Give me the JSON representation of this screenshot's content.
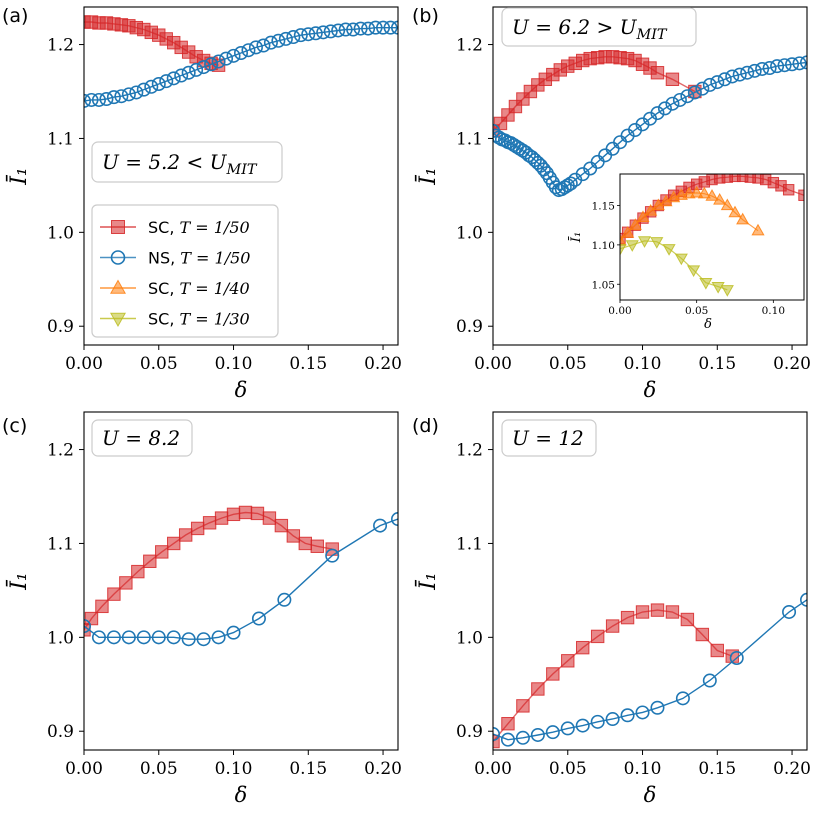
{
  "chart_data": [
    {
      "type": "line",
      "panel_label": "(a)",
      "xlabel": "δ",
      "ylabel": "Ī₁",
      "xlim": [
        0,
        0.21
      ],
      "ylim": [
        0.88,
        1.24
      ],
      "xticks": [
        0.0,
        0.05,
        0.1,
        0.15,
        0.2
      ],
      "xtick_labels": [
        "0.00",
        "0.05",
        "0.10",
        "0.15",
        "0.20"
      ],
      "yticks": [
        0.9,
        1.0,
        1.1,
        1.2
      ],
      "ytick_labels": [
        "0.9",
        "1.0",
        "1.1",
        "1.2"
      ],
      "annotation": "U = 5.2 < U_MIT",
      "legend_position": "lower-left",
      "legend": [
        {
          "name": "SC, T = 1/50",
          "color": "#d62728",
          "marker": "square"
        },
        {
          "name": "NS, T = 1/50",
          "color": "#1f77b4",
          "marker": "circle"
        },
        {
          "name": "SC, T = 1/40",
          "color": "#ff7f0e",
          "marker": "triangle-up"
        },
        {
          "name": "SC, T = 1/30",
          "color": "#bcbd22",
          "marker": "triangle-down"
        }
      ],
      "series": [
        {
          "name": "SC, T = 1/50",
          "color": "#d62728",
          "marker": "square",
          "x": [
            0.0,
            0.005,
            0.01,
            0.015,
            0.02,
            0.025,
            0.03,
            0.035,
            0.04,
            0.045,
            0.05,
            0.055,
            0.06,
            0.065,
            0.07,
            0.075,
            0.08,
            0.085,
            0.09
          ],
          "y": [
            1.224,
            1.224,
            1.223,
            1.223,
            1.222,
            1.221,
            1.22,
            1.218,
            1.216,
            1.213,
            1.21,
            1.206,
            1.202,
            1.197,
            1.192,
            1.187,
            1.183,
            1.18,
            1.178
          ]
        },
        {
          "name": "NS, T = 1/50",
          "color": "#1f77b4",
          "marker": "circle",
          "x": [
            0.0,
            0.005,
            0.01,
            0.015,
            0.02,
            0.025,
            0.03,
            0.035,
            0.04,
            0.045,
            0.05,
            0.055,
            0.06,
            0.065,
            0.07,
            0.075,
            0.08,
            0.085,
            0.09,
            0.095,
            0.1,
            0.105,
            0.11,
            0.115,
            0.12,
            0.125,
            0.13,
            0.135,
            0.14,
            0.145,
            0.15,
            0.155,
            0.16,
            0.165,
            0.17,
            0.175,
            0.18,
            0.185,
            0.19,
            0.195,
            0.2,
            0.205,
            0.21
          ],
          "y": [
            1.14,
            1.141,
            1.141,
            1.142,
            1.144,
            1.145,
            1.147,
            1.149,
            1.152,
            1.155,
            1.158,
            1.161,
            1.164,
            1.167,
            1.17,
            1.173,
            1.176,
            1.179,
            1.182,
            1.185,
            1.188,
            1.191,
            1.194,
            1.197,
            1.199,
            1.202,
            1.204,
            1.206,
            1.208,
            1.21,
            1.211,
            1.212,
            1.213,
            1.214,
            1.215,
            1.216,
            1.216,
            1.217,
            1.217,
            1.218,
            1.218,
            1.218,
            1.218
          ]
        }
      ]
    },
    {
      "type": "line",
      "panel_label": "(b)",
      "xlabel": "δ",
      "ylabel": "Ī₁",
      "xlim": [
        0,
        0.21
      ],
      "ylim": [
        0.88,
        1.24
      ],
      "xticks": [
        0.0,
        0.05,
        0.1,
        0.15,
        0.2
      ],
      "xtick_labels": [
        "0.00",
        "0.05",
        "0.10",
        "0.15",
        "0.20"
      ],
      "yticks": [
        0.9,
        1.0,
        1.1,
        1.2
      ],
      "ytick_labels": [
        "0.9",
        "1.0",
        "1.1",
        "1.2"
      ],
      "annotation": "U = 6.2 > U_MIT",
      "series": [
        {
          "name": "SC, T = 1/50",
          "color": "#d62728",
          "marker": "square",
          "x": [
            0.0,
            0.005,
            0.01,
            0.015,
            0.02,
            0.025,
            0.03,
            0.035,
            0.04,
            0.045,
            0.05,
            0.055,
            0.06,
            0.065,
            0.07,
            0.075,
            0.08,
            0.085,
            0.09,
            0.095,
            0.1,
            0.105,
            0.11,
            0.12,
            0.135
          ],
          "y": [
            1.108,
            1.116,
            1.125,
            1.134,
            1.142,
            1.15,
            1.157,
            1.163,
            1.168,
            1.173,
            1.177,
            1.18,
            1.183,
            1.185,
            1.186,
            1.187,
            1.187,
            1.186,
            1.185,
            1.183,
            1.179,
            1.175,
            1.17,
            1.163,
            1.15
          ]
        },
        {
          "name": "NS, T = 1/50",
          "color": "#1f77b4",
          "marker": "circle",
          "x": [
            0.0,
            0.002,
            0.004,
            0.006,
            0.008,
            0.01,
            0.012,
            0.014,
            0.016,
            0.018,
            0.02,
            0.022,
            0.024,
            0.026,
            0.028,
            0.03,
            0.032,
            0.034,
            0.036,
            0.038,
            0.04,
            0.042,
            0.044,
            0.046,
            0.048,
            0.05,
            0.052,
            0.055,
            0.06,
            0.065,
            0.07,
            0.075,
            0.08,
            0.085,
            0.09,
            0.095,
            0.1,
            0.105,
            0.11,
            0.115,
            0.12,
            0.125,
            0.13,
            0.135,
            0.14,
            0.145,
            0.15,
            0.155,
            0.16,
            0.165,
            0.17,
            0.175,
            0.18,
            0.185,
            0.19,
            0.195,
            0.2,
            0.205,
            0.21
          ],
          "y": [
            1.108,
            1.103,
            1.101,
            1.099,
            1.098,
            1.096,
            1.095,
            1.093,
            1.091,
            1.089,
            1.087,
            1.085,
            1.082,
            1.08,
            1.077,
            1.074,
            1.071,
            1.067,
            1.063,
            1.058,
            1.053,
            1.048,
            1.045,
            1.046,
            1.048,
            1.05,
            1.052,
            1.056,
            1.062,
            1.068,
            1.075,
            1.082,
            1.089,
            1.096,
            1.103,
            1.109,
            1.115,
            1.121,
            1.127,
            1.132,
            1.137,
            1.141,
            1.145,
            1.149,
            1.153,
            1.157,
            1.16,
            1.163,
            1.166,
            1.168,
            1.17,
            1.172,
            1.174,
            1.175,
            1.177,
            1.178,
            1.179,
            1.18,
            1.181
          ]
        }
      ],
      "inset": {
        "xlim": [
          0,
          0.12
        ],
        "ylim": [
          1.03,
          1.19
        ],
        "xticks": [
          0.0,
          0.05,
          0.1
        ],
        "xtick_labels": [
          "0.00",
          "0.05",
          "0.10"
        ],
        "yticks": [
          1.05,
          1.1,
          1.15
        ],
        "ytick_labels": [
          "1.05",
          "1.10",
          "1.15"
        ],
        "xlabel": "δ",
        "ylabel": "Ī₁",
        "series": [
          {
            "name": "SC, T = 1/50",
            "color": "#d62728",
            "marker": "square",
            "x": [
              0.0,
              0.005,
              0.01,
              0.015,
              0.02,
              0.025,
              0.03,
              0.035,
              0.04,
              0.045,
              0.05,
              0.055,
              0.06,
              0.065,
              0.07,
              0.075,
              0.08,
              0.085,
              0.09,
              0.095,
              0.1,
              0.105,
              0.11,
              0.12
            ],
            "y": [
              1.108,
              1.116,
              1.125,
              1.134,
              1.142,
              1.15,
              1.157,
              1.163,
              1.168,
              1.173,
              1.177,
              1.18,
              1.183,
              1.185,
              1.186,
              1.187,
              1.187,
              1.186,
              1.185,
              1.183,
              1.179,
              1.175,
              1.17,
              1.163
            ]
          },
          {
            "name": "SC, T = 1/40",
            "color": "#ff7f0e",
            "marker": "triangle-up",
            "x": [
              0.0,
              0.005,
              0.01,
              0.015,
              0.02,
              0.025,
              0.03,
              0.035,
              0.04,
              0.045,
              0.05,
              0.055,
              0.06,
              0.065,
              0.07,
              0.075,
              0.08,
              0.09
            ],
            "y": [
              1.105,
              1.115,
              1.125,
              1.135,
              1.143,
              1.15,
              1.155,
              1.16,
              1.163,
              1.165,
              1.166,
              1.165,
              1.162,
              1.157,
              1.15,
              1.141,
              1.132,
              1.118
            ]
          },
          {
            "name": "SC, T = 1/30",
            "color": "#bcbd22",
            "marker": "triangle-down",
            "x": [
              0.0,
              0.008,
              0.016,
              0.024,
              0.032,
              0.04,
              0.048,
              0.056,
              0.064,
              0.07
            ],
            "y": [
              1.095,
              1.1,
              1.105,
              1.104,
              1.095,
              1.083,
              1.068,
              1.052,
              1.047,
              1.043
            ]
          }
        ]
      }
    },
    {
      "type": "line",
      "panel_label": "(c)",
      "xlabel": "δ",
      "ylabel": "Ī₁",
      "xlim": [
        0,
        0.21
      ],
      "ylim": [
        0.88,
        1.24
      ],
      "xticks": [
        0.0,
        0.05,
        0.1,
        0.15,
        0.2
      ],
      "xtick_labels": [
        "0.00",
        "0.05",
        "0.10",
        "0.15",
        "0.20"
      ],
      "yticks": [
        0.9,
        1.0,
        1.1,
        1.2
      ],
      "ytick_labels": [
        "0.9",
        "1.0",
        "1.1",
        "1.2"
      ],
      "annotation": "U = 8.2",
      "series": [
        {
          "name": "SC, T = 1/50",
          "color": "#d62728",
          "marker": "square",
          "x": [
            0.0,
            0.005,
            0.012,
            0.02,
            0.028,
            0.036,
            0.044,
            0.052,
            0.06,
            0.068,
            0.076,
            0.084,
            0.092,
            0.1,
            0.108,
            0.116,
            0.124,
            0.132,
            0.14,
            0.148,
            0.156,
            0.166
          ],
          "y": [
            1.008,
            1.02,
            1.033,
            1.046,
            1.058,
            1.07,
            1.081,
            1.091,
            1.1,
            1.109,
            1.116,
            1.122,
            1.127,
            1.131,
            1.133,
            1.132,
            1.127,
            1.119,
            1.108,
            1.1,
            1.097,
            1.094
          ]
        },
        {
          "name": "NS, T = 1/50",
          "color": "#1f77b4",
          "marker": "circle",
          "x": [
            0.0,
            0.01,
            0.02,
            0.03,
            0.04,
            0.05,
            0.06,
            0.07,
            0.08,
            0.09,
            0.1,
            0.117,
            0.134,
            0.166,
            0.198,
            0.21
          ],
          "y": [
            1.012,
            1.0,
            1.0,
            1.0,
            1.0,
            1.0,
            1.0,
            0.998,
            0.998,
            1.0,
            1.005,
            1.02,
            1.04,
            1.087,
            1.119,
            1.126
          ]
        }
      ]
    },
    {
      "type": "line",
      "panel_label": "(d)",
      "xlabel": "δ",
      "ylabel": "Ī₁",
      "xlim": [
        0,
        0.21
      ],
      "ylim": [
        0.88,
        1.24
      ],
      "xticks": [
        0.0,
        0.05,
        0.1,
        0.15,
        0.2
      ],
      "xtick_labels": [
        "0.00",
        "0.05",
        "0.10",
        "0.15",
        "0.20"
      ],
      "yticks": [
        0.9,
        1.0,
        1.1,
        1.2
      ],
      "ytick_labels": [
        "0.9",
        "1.0",
        "1.1",
        "1.2"
      ],
      "annotation": "U = 12",
      "series": [
        {
          "name": "SC, T = 1/50",
          "color": "#d62728",
          "marker": "square",
          "x": [
            0.0,
            0.01,
            0.02,
            0.03,
            0.04,
            0.05,
            0.06,
            0.07,
            0.08,
            0.09,
            0.1,
            0.11,
            0.12,
            0.13,
            0.14,
            0.15,
            0.16
          ],
          "y": [
            0.889,
            0.908,
            0.927,
            0.945,
            0.961,
            0.975,
            0.989,
            1.001,
            1.012,
            1.021,
            1.027,
            1.029,
            1.027,
            1.019,
            1.003,
            0.986,
            0.98
          ]
        },
        {
          "name": "NS, T = 1/50",
          "color": "#1f77b4",
          "marker": "circle",
          "x": [
            0.0,
            0.01,
            0.02,
            0.03,
            0.04,
            0.05,
            0.06,
            0.07,
            0.08,
            0.09,
            0.1,
            0.11,
            0.127,
            0.145,
            0.163,
            0.198,
            0.21
          ],
          "y": [
            0.897,
            0.891,
            0.893,
            0.896,
            0.899,
            0.903,
            0.906,
            0.91,
            0.913,
            0.917,
            0.92,
            0.925,
            0.935,
            0.954,
            0.978,
            1.027,
            1.04
          ]
        }
      ]
    }
  ]
}
